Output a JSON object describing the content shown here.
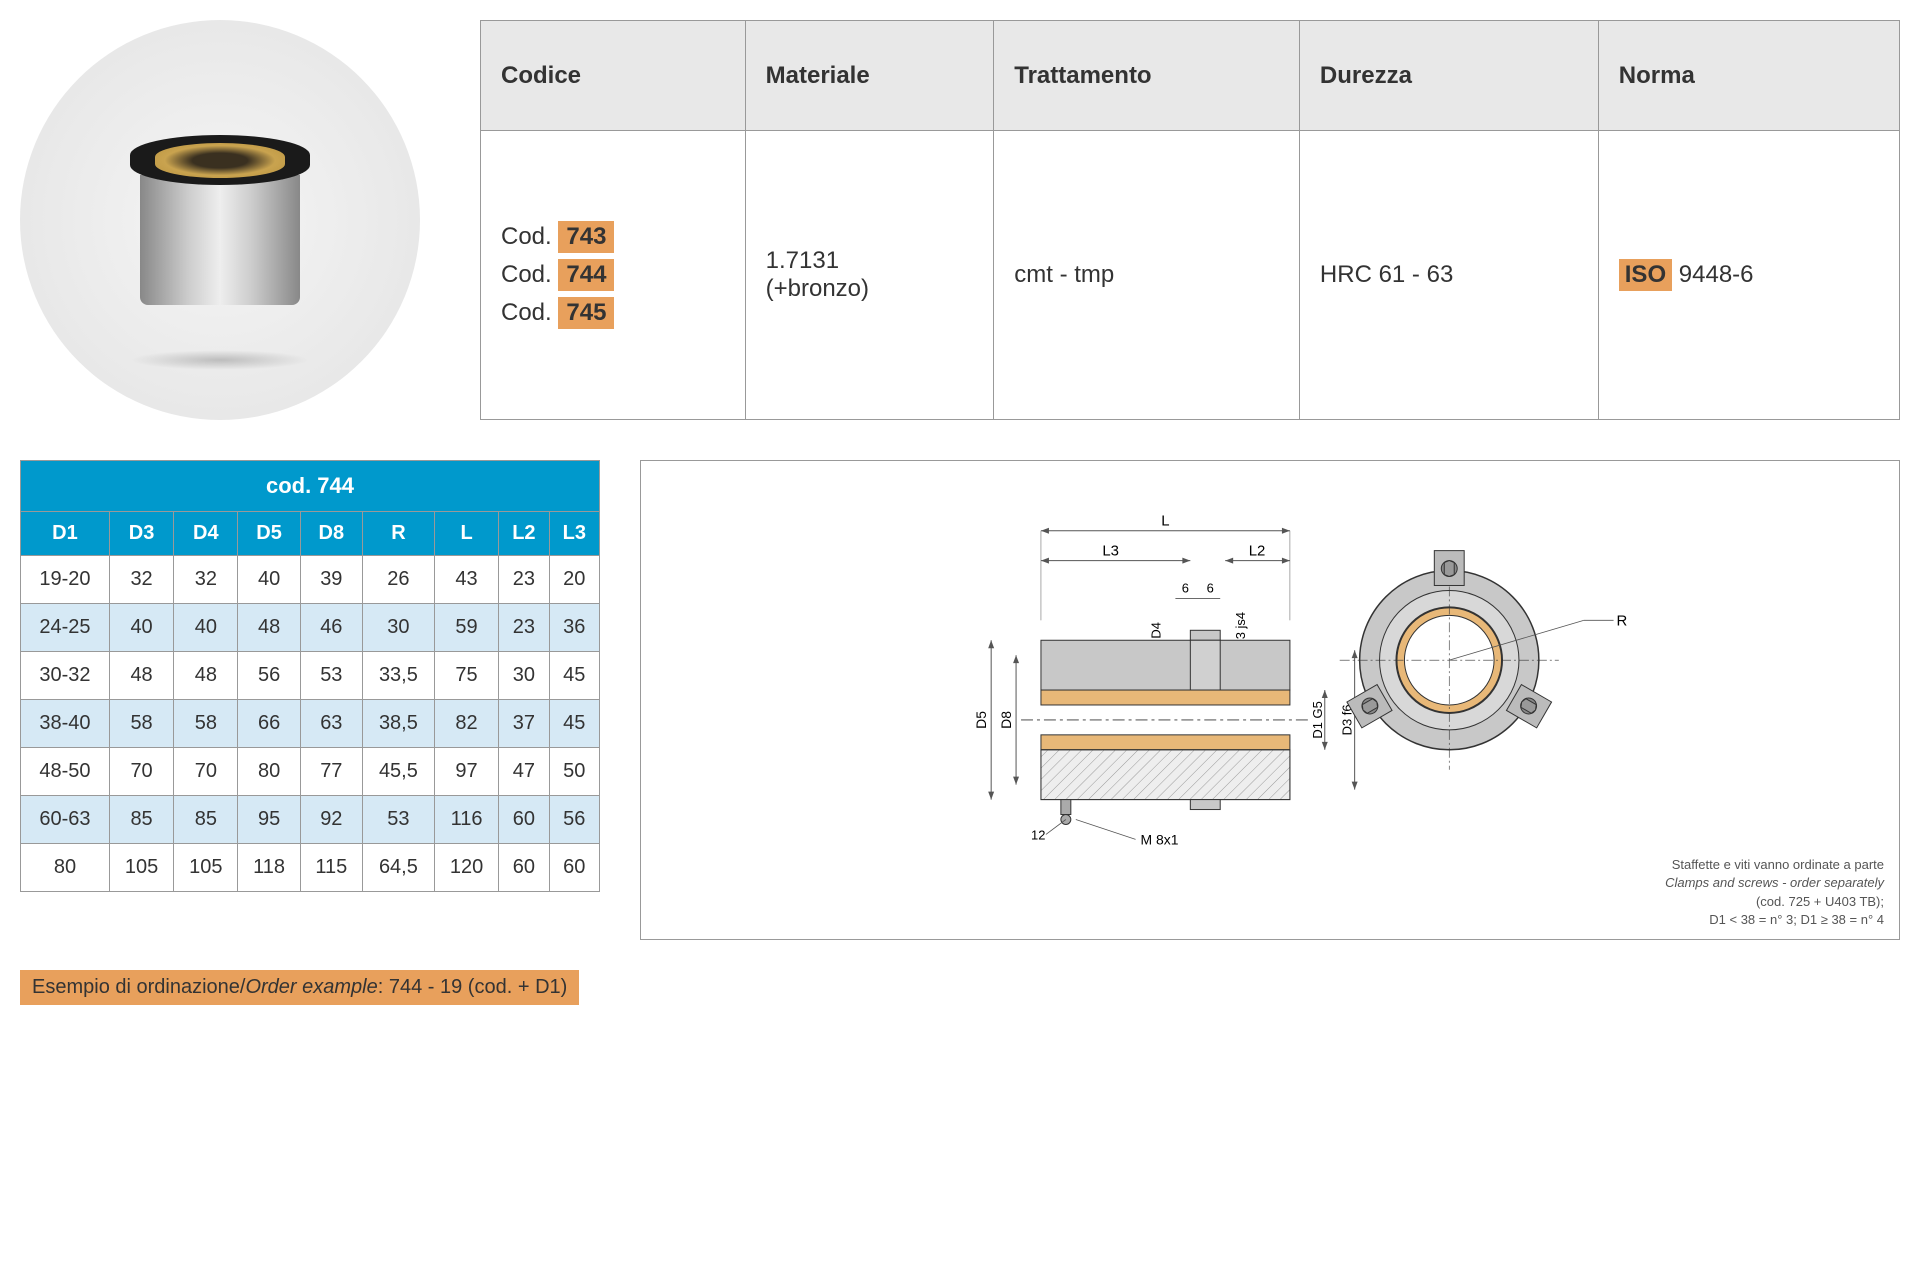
{
  "spec_table": {
    "headers": [
      "Codice",
      "Materiale",
      "Trattamento",
      "Durezza",
      "Norma"
    ],
    "codes_prefix": "Cod.",
    "codes": [
      "743",
      "744",
      "745"
    ],
    "materiale_line1": "1.7131",
    "materiale_line2": "(+bronzo)",
    "trattamento": "cmt - tmp",
    "durezza": "HRC 61 - 63",
    "norma_iso": "ISO",
    "norma_num": " 9448-6"
  },
  "dim_table": {
    "title": "cod. 744",
    "headers": [
      "D1",
      "D3",
      "D4",
      "D5",
      "D8",
      "R",
      "L",
      "L2",
      "L3"
    ],
    "rows": [
      [
        "19-20",
        "32",
        "32",
        "40",
        "39",
        "26",
        "43",
        "23",
        "20"
      ],
      [
        "24-25",
        "40",
        "40",
        "48",
        "46",
        "30",
        "59",
        "23",
        "36"
      ],
      [
        "30-32",
        "48",
        "48",
        "56",
        "53",
        "33,5",
        "75",
        "30",
        "45"
      ],
      [
        "38-40",
        "58",
        "58",
        "66",
        "63",
        "38,5",
        "82",
        "37",
        "45"
      ],
      [
        "48-50",
        "70",
        "70",
        "80",
        "77",
        "45,5",
        "97",
        "47",
        "50"
      ],
      [
        "60-63",
        "85",
        "85",
        "95",
        "92",
        "53",
        "116",
        "60",
        "56"
      ],
      [
        "80",
        "105",
        "105",
        "118",
        "115",
        "64,5",
        "120",
        "60",
        "60"
      ]
    ]
  },
  "drawing": {
    "labels": {
      "L": "L",
      "L3": "L3",
      "L2": "L2",
      "D4": "D4",
      "D3js4": "D3 js4",
      "D5": "D5",
      "D8": "D8",
      "D1G5": "D1 G5",
      "D3f6": "D3 f6",
      "R": "R",
      "six": "6",
      "six2": "6",
      "twelve": "12",
      "M8x1": "M 8x1"
    },
    "note_line1": "Staffette e viti vanno ordinate a parte",
    "note_line2": "Clamps and screws - order separately",
    "note_line3": "(cod. 725 + U403 TB);",
    "note_line4": "D1 < 38 = n° 3; D1 ≥ 38 = n° 4",
    "colors": {
      "bronze": "#e8b878",
      "steel": "#c0c0c0",
      "hatch": "#888888",
      "outline": "#333333",
      "dim": "#555555"
    }
  },
  "order_example": {
    "label_it": "Esempio di ordinazione/",
    "label_en": "Order example",
    "value": ": 744 - 19 (cod. + D1)"
  }
}
